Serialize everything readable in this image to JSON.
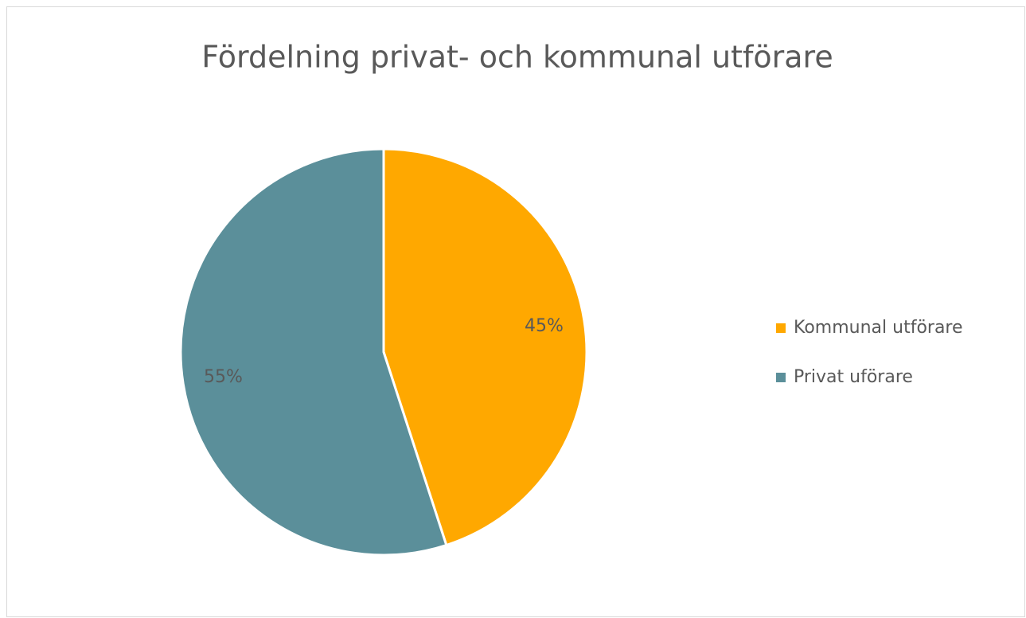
{
  "chart_data": {
    "type": "pie",
    "title": "Fördelning privat- och kommunal utförare",
    "categories": [
      "Kommunal utförare",
      "Privat uförare"
    ],
    "values": [
      45,
      55
    ],
    "value_labels": [
      "45%",
      "55%"
    ],
    "colors": [
      "#ffa800",
      "#5b8f9a"
    ],
    "legend": "right"
  }
}
